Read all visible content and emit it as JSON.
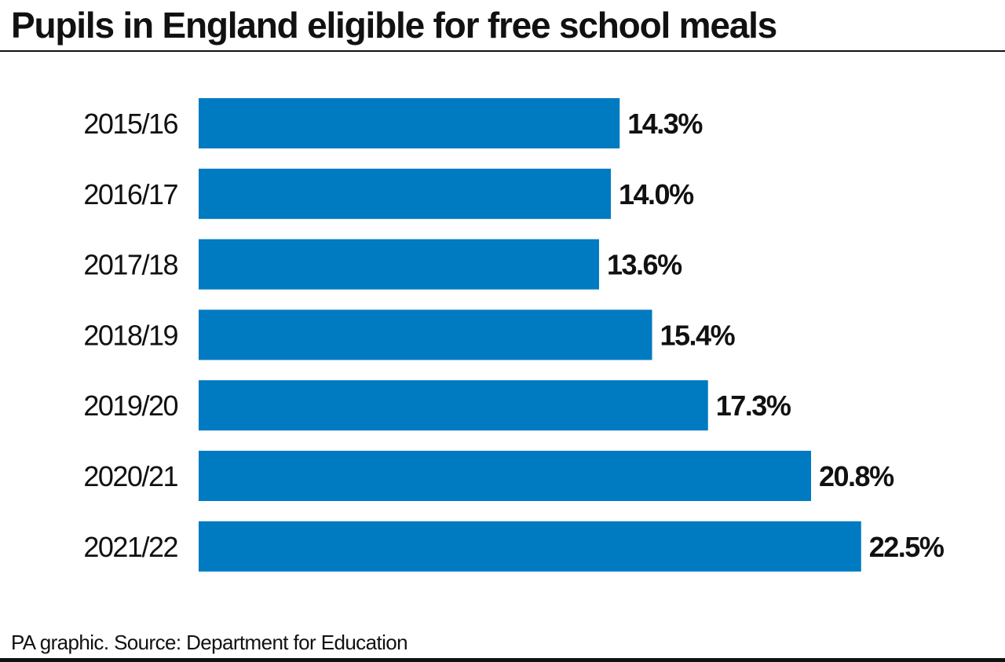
{
  "title": "Pupils in England eligible for free school meals",
  "source": "PA graphic. Source: Department for Education",
  "colors": {
    "bar": "#007ac1",
    "text": "#111111",
    "rule": "#111111"
  },
  "chart_data": {
    "type": "bar",
    "orientation": "horizontal",
    "title": "Pupils in England eligible for free school meals",
    "xlabel": "",
    "ylabel": "",
    "unit": "%",
    "categories": [
      "2015/16",
      "2016/17",
      "2017/18",
      "2018/19",
      "2019/20",
      "2020/21",
      "2021/22"
    ],
    "values": [
      14.3,
      14.0,
      13.6,
      15.4,
      17.3,
      20.8,
      22.5
    ],
    "value_labels": [
      "14.3%",
      "14.0%",
      "13.6%",
      "15.4%",
      "17.3%",
      "20.8%",
      "22.5%"
    ],
    "xlim": [
      0,
      25
    ],
    "grid": false,
    "legend": "none"
  }
}
